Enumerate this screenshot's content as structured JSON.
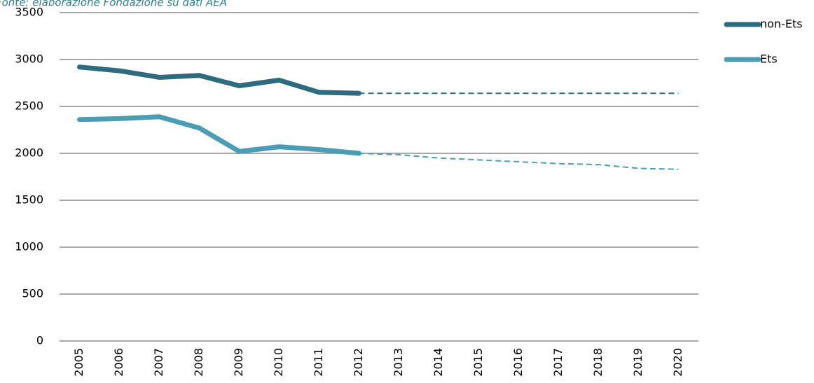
{
  "chart_data": {
    "type": "line",
    "title": "Fonte: elaborazione Fondazione su dati AEA",
    "categories": [
      "2005",
      "2006",
      "2007",
      "2008",
      "2009",
      "2010",
      "2011",
      "2012",
      "2013",
      "2014",
      "2015",
      "2016",
      "2017",
      "2018",
      "2019",
      "2020"
    ],
    "series": [
      {
        "name": "non-Ets",
        "color": "#2e6b7e",
        "values": [
          2920,
          2880,
          2810,
          2830,
          2720,
          2780,
          2650,
          2640,
          null,
          null,
          null,
          null,
          null,
          null,
          null,
          null
        ]
      },
      {
        "name": "Ets",
        "color": "#4a9db5",
        "values": [
          2360,
          2370,
          2390,
          2270,
          2020,
          2070,
          2040,
          2000,
          null,
          null,
          null,
          null,
          null,
          null,
          null,
          null
        ]
      },
      {
        "color": "#2e6b7e",
        "dashed": true,
        "values": [
          null,
          null,
          null,
          null,
          null,
          null,
          null,
          2640,
          2640,
          2640,
          2640,
          2640,
          2640,
          2640,
          2640,
          2640
        ]
      },
      {
        "color": "#4a9db5",
        "dashed": true,
        "values": [
          null,
          null,
          null,
          null,
          null,
          null,
          null,
          2000,
          1985,
          1950,
          1930,
          1910,
          1890,
          1880,
          1840,
          1830
        ]
      }
    ],
    "ylim": [
      0,
      3500
    ],
    "yticks": [
      0,
      500,
      1000,
      1500,
      2000,
      2500,
      3000,
      3500
    ],
    "grid": true,
    "legend": "right"
  }
}
